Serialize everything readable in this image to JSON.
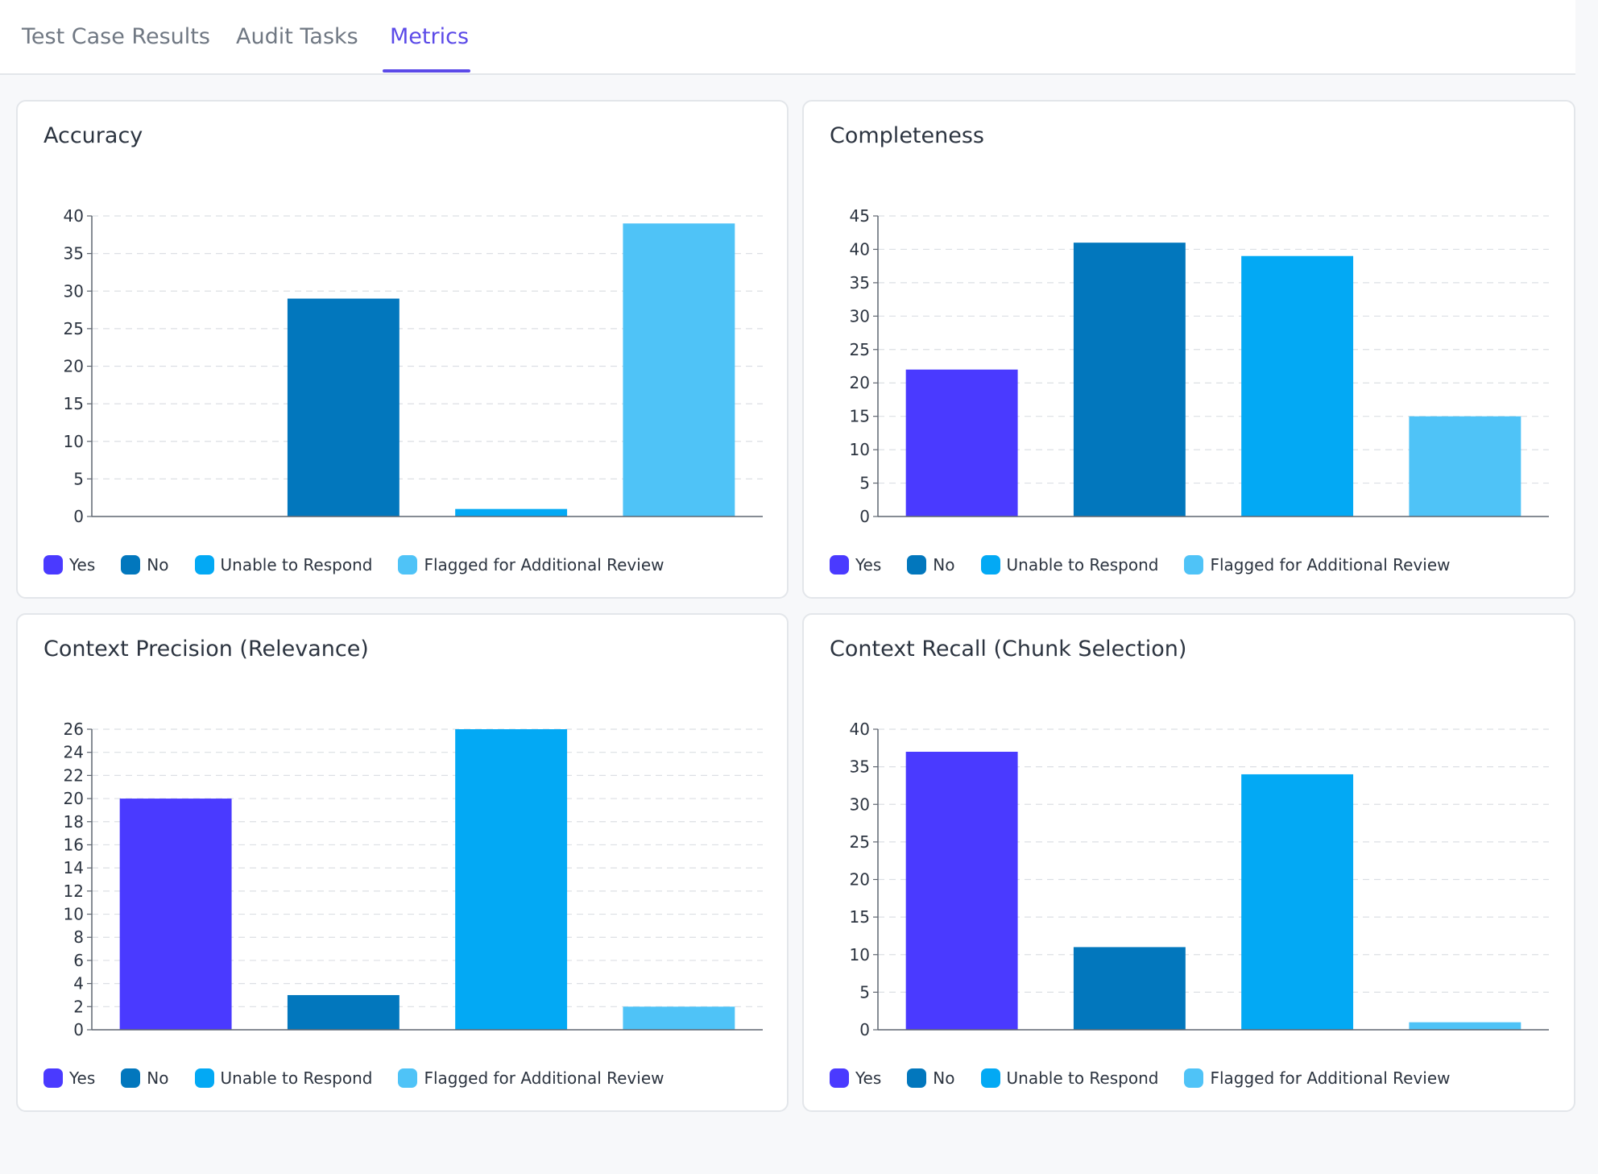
{
  "tabs": [
    {
      "label": "Test Case Results",
      "active": false
    },
    {
      "label": "Audit Tasks",
      "active": false
    },
    {
      "label": "Metrics",
      "active": true
    }
  ],
  "accent_color": "#5b4ae8",
  "legend": [
    {
      "label": "Yes",
      "color": "#4a3aff"
    },
    {
      "label": "No",
      "color": "#0277bd"
    },
    {
      "label": "Unable to Respond",
      "color": "#03a9f4"
    },
    {
      "label": "Flagged for Additional Review",
      "color": "#4fc3f7"
    }
  ],
  "chart_data": [
    {
      "type": "bar",
      "title": "Accuracy",
      "categories": [
        "Yes",
        "No",
        "Unable to Respond",
        "Flagged for Additional Review"
      ],
      "values": [
        0,
        29,
        1,
        39
      ],
      "ylim": [
        0,
        40
      ],
      "yticks": [
        0,
        5,
        10,
        15,
        20,
        25,
        30,
        35,
        40
      ],
      "grid": true,
      "legend_position": "bottom-left"
    },
    {
      "type": "bar",
      "title": "Completeness",
      "categories": [
        "Yes",
        "No",
        "Unable to Respond",
        "Flagged for Additional Review"
      ],
      "values": [
        22,
        41,
        39,
        15
      ],
      "ylim": [
        0,
        45
      ],
      "yticks": [
        0,
        5,
        10,
        15,
        20,
        25,
        30,
        35,
        40,
        45
      ],
      "grid": true,
      "legend_position": "bottom-left"
    },
    {
      "type": "bar",
      "title": "Context Precision (Relevance)",
      "categories": [
        "Yes",
        "No",
        "Unable to Respond",
        "Flagged for Additional Review"
      ],
      "values": [
        20,
        3,
        26,
        2
      ],
      "ylim": [
        0,
        26
      ],
      "yticks": [
        0,
        2,
        4,
        6,
        8,
        10,
        12,
        14,
        16,
        18,
        20,
        22,
        24,
        26
      ],
      "grid": true,
      "legend_position": "bottom-left"
    },
    {
      "type": "bar",
      "title": "Context Recall (Chunk Selection)",
      "categories": [
        "Yes",
        "No",
        "Unable to Respond",
        "Flagged for Additional Review"
      ],
      "values": [
        37,
        11,
        34,
        1
      ],
      "ylim": [
        0,
        40
      ],
      "yticks": [
        0,
        5,
        10,
        15,
        20,
        25,
        30,
        35,
        40
      ],
      "grid": true,
      "legend_position": "bottom-left"
    }
  ]
}
